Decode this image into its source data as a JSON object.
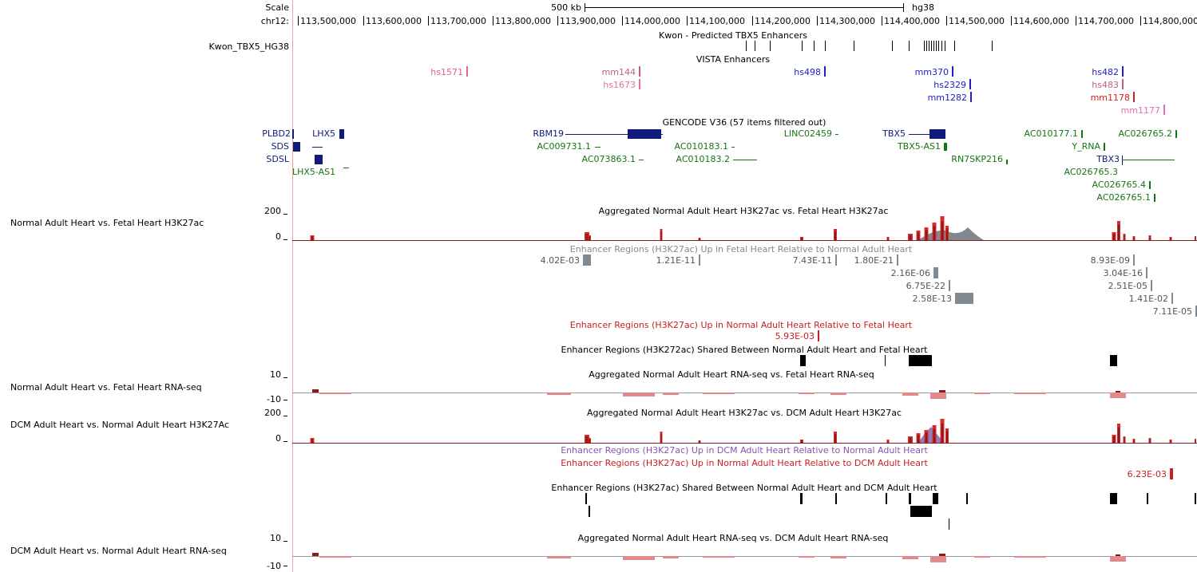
{
  "header": {
    "scale_label": "Scale",
    "chrom_label": "chr12:",
    "scale_value": "500 kb",
    "assembly": "hg38",
    "ruler_positions": [
      "113,500,000",
      "113,600,000",
      "113,700,000",
      "113,800,000",
      "113,900,000",
      "114,000,000",
      "114,100,000",
      "114,200,000",
      "114,300,000",
      "114,400,000",
      "114,500,000",
      "114,600,000",
      "114,700,000",
      "114,800,000"
    ]
  },
  "tracks": {
    "kwon": {
      "side_label": "Kwon_TBX5_HG38",
      "title": "Kwon - Predicted TBX5 Enhancers"
    },
    "vista": {
      "title": "VISTA Enhancers",
      "items": [
        {
          "name": "hs1571",
          "color": "#e0609c"
        },
        {
          "name": "mm144",
          "color": "#c0608a"
        },
        {
          "name": "hs1673",
          "color": "#e070a0"
        },
        {
          "name": "hs498",
          "color": "#2020c8"
        },
        {
          "name": "mm370",
          "color": "#2020c8"
        },
        {
          "name": "hs2329",
          "color": "#2020c8"
        },
        {
          "name": "mm1282",
          "color": "#2020c8"
        },
        {
          "name": "hs482",
          "color": "#2020c8"
        },
        {
          "name": "hs483",
          "color": "#c0608a"
        },
        {
          "name": "mm1178",
          "color": "#d02020"
        },
        {
          "name": "mm1177",
          "color": "#e070b0"
        }
      ]
    },
    "gencode": {
      "title": "GENCODE V36 (57 items filtered out)",
      "genes": [
        {
          "name": "PLBD2",
          "color": "#101a7a"
        },
        {
          "name": "SDS",
          "color": "#101a7a"
        },
        {
          "name": "SDSL",
          "color": "#101a7a"
        },
        {
          "name": "LHX5",
          "color": "#101a7a"
        },
        {
          "name": "LHX5-AS1",
          "color": "#157515"
        },
        {
          "name": "RBM19",
          "color": "#101a7a"
        },
        {
          "name": "AC009731.1",
          "color": "#157515"
        },
        {
          "name": "AC073863.1",
          "color": "#157515"
        },
        {
          "name": "AC010183.1",
          "color": "#157515"
        },
        {
          "name": "AC010183.2",
          "color": "#157515"
        },
        {
          "name": "LINC02459",
          "color": "#157515"
        },
        {
          "name": "TBX5",
          "color": "#101a7a"
        },
        {
          "name": "TBX5-AS1",
          "color": "#157515"
        },
        {
          "name": "RN7SKP216",
          "color": "#157515"
        },
        {
          "name": "AC010177.1",
          "color": "#157515"
        },
        {
          "name": "AC026765.2",
          "color": "#157515"
        },
        {
          "name": "Y_RNA",
          "color": "#157515"
        },
        {
          "name": "TBX3",
          "color": "#101a7a"
        },
        {
          "name": "AC026765.3",
          "color": "#157515"
        },
        {
          "name": "AC026765.4",
          "color": "#157515"
        },
        {
          "name": "AC026765.1",
          "color": "#157515"
        }
      ]
    },
    "h3k27ac_fetal": {
      "side_label": "Normal Adult Heart vs. Fetal Heart H3K27ac",
      "title": "Aggregated Normal Adult Heart H3K27ac vs. Fetal Heart H3K27ac",
      "ymax": "200",
      "ymin": "0"
    },
    "fetal_up": {
      "title": "Enhancer Regions (H3K27ac) Up in Fetal Heart Relative to Normal Adult Heart",
      "color": "#808890",
      "values": [
        "4.02E-03",
        "1.21E-11",
        "7.43E-11",
        "1.80E-21",
        "2.16E-06",
        "6.75E-22",
        "2.58E-13",
        "8.93E-09",
        "3.04E-16",
        "2.51E-05",
        "1.41E-02",
        "7.11E-05"
      ]
    },
    "adult_up_fetal": {
      "title": "Enhancer Regions (H3K27ac) Up in Normal Adult Heart Relative to Fetal Heart",
      "color": "#c82020",
      "values": [
        "5.93E-03"
      ]
    },
    "shared_fetal": {
      "title": "Enhancer Regions (H3K272ac) Shared Between Normal Adult Heart and Fetal Heart"
    },
    "rna_fetal": {
      "side_label": "Normal Adult Heart vs. Fetal Heart RNA-seq",
      "title": "Aggregated Normal Adult Heart RNA-seq vs. Fetal Heart RNA-seq",
      "ymax": "10",
      "ymin": "-10"
    },
    "h3k27ac_dcm": {
      "side_label": "DCM Adult Heart vs. Normal Adult Heart H3K27Ac",
      "title": "Aggregated Normal Adult Heart H3K27ac vs. DCM Adult Heart H3K27ac",
      "ymax": "200",
      "ymin": "0"
    },
    "dcm_up": {
      "title": "Enhancer Regions (H3K27ac) Up in DCM Adult Heart Relative to Normal Adult Heart",
      "color": "#9050b0"
    },
    "adult_up_dcm": {
      "title": "Enhancer Regions (H3K27ac) Up in Normal Adult Heart Relative to DCM Adult Heart",
      "color": "#c82020",
      "values": [
        "6.23E-03"
      ]
    },
    "shared_dcm": {
      "title": "Enhancer Regions (H3K27ac) Shared Between Normal Adult Heart and DCM Adult Heart"
    },
    "rna_dcm": {
      "side_label": "DCM Adult Heart vs. Normal Adult Heart RNA-seq",
      "title": "Aggregated Normal Adult Heart RNA-seq vs. DCM Adult Heart RNA-seq",
      "ymax": "10",
      "ymin": "-10"
    }
  }
}
